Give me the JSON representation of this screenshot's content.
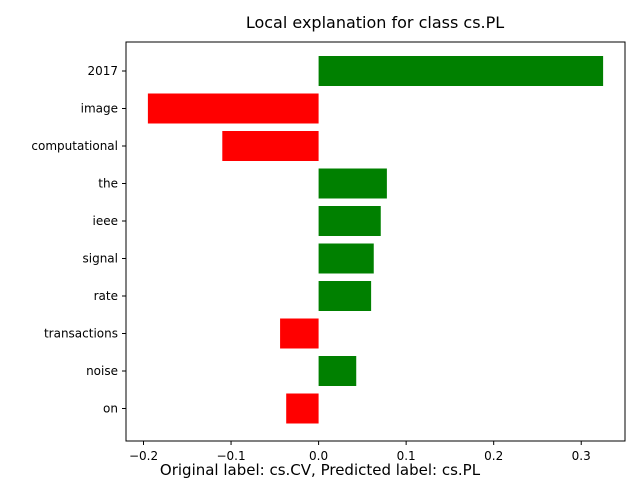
{
  "chart_data": {
    "type": "bar",
    "orientation": "horizontal",
    "title": "Local explanation for class cs.PL",
    "caption": "Original label: cs.CV, Predicted label: cs.PL",
    "categories": [
      "2017",
      "image",
      "computational",
      "the",
      "ieee",
      "signal",
      "rate",
      "transactions",
      "noise",
      "on"
    ],
    "values": [
      0.325,
      -0.195,
      -0.11,
      0.078,
      0.071,
      0.063,
      0.06,
      -0.044,
      0.043,
      -0.037
    ],
    "xlim": [
      -0.22,
      0.35
    ],
    "xticks": [
      -0.2,
      -0.1,
      0.0,
      0.1,
      0.2,
      0.3
    ],
    "xtick_labels": [
      "−0.2",
      "−0.1",
      "0.0",
      "0.1",
      "0.2",
      "0.3"
    ],
    "xlabel": "",
    "ylabel": "",
    "grid": false,
    "colors": {
      "positive": "#008000",
      "negative": "#ff0000"
    }
  }
}
